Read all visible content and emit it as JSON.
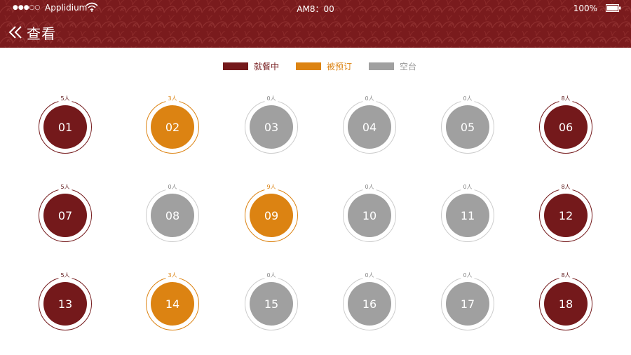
{
  "status_bar": {
    "signal": "●●●○○",
    "carrier": "Applidium",
    "time": "AM8：00",
    "battery": "100%"
  },
  "nav": {
    "title": "查看"
  },
  "colors": {
    "header": "#7a1b1d",
    "dining": "#74191b",
    "reserved": "#dc8312",
    "empty": "#a0a0a0"
  },
  "legend": [
    {
      "label": "就餐中",
      "status": "dining"
    },
    {
      "label": "被预订",
      "status": "reserved"
    },
    {
      "label": "空台",
      "status": "empty"
    }
  ],
  "tables": [
    {
      "number": "01",
      "guests": "5人",
      "status": "dining"
    },
    {
      "number": "02",
      "guests": "3人",
      "status": "reserved"
    },
    {
      "number": "03",
      "guests": "0人",
      "status": "empty"
    },
    {
      "number": "04",
      "guests": "0人",
      "status": "empty"
    },
    {
      "number": "05",
      "guests": "0人",
      "status": "empty"
    },
    {
      "number": "06",
      "guests": "8人",
      "status": "dining"
    },
    {
      "number": "07",
      "guests": "5人",
      "status": "dining"
    },
    {
      "number": "08",
      "guests": "0人",
      "status": "empty"
    },
    {
      "number": "09",
      "guests": "9人",
      "status": "reserved"
    },
    {
      "number": "10",
      "guests": "0人",
      "status": "empty"
    },
    {
      "number": "11",
      "guests": "0人",
      "status": "empty"
    },
    {
      "number": "12",
      "guests": "8人",
      "status": "dining"
    },
    {
      "number": "13",
      "guests": "5人",
      "status": "dining"
    },
    {
      "number": "14",
      "guests": "3人",
      "status": "reserved"
    },
    {
      "number": "15",
      "guests": "0人",
      "status": "empty"
    },
    {
      "number": "16",
      "guests": "0人",
      "status": "empty"
    },
    {
      "number": "17",
      "guests": "0人",
      "status": "empty"
    },
    {
      "number": "18",
      "guests": "8人",
      "status": "dining"
    }
  ]
}
